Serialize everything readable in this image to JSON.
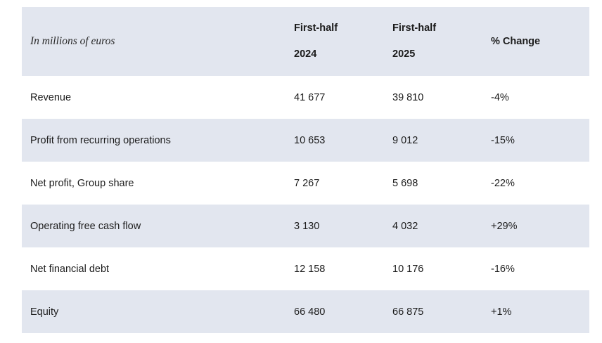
{
  "table": {
    "header": {
      "units": "In millions of euros",
      "col1_line1": "First-half",
      "col1_line2": "2024",
      "col2_line1": "First-half",
      "col2_line2": "2025",
      "col3": "% Change"
    },
    "rows": [
      {
        "label": "Revenue",
        "h1_2024": "41 677",
        "h1_2025": "39 810",
        "change": "-4%"
      },
      {
        "label": "Profit from recurring operations",
        "h1_2024": "10 653",
        "h1_2025": "9 012",
        "change": "-15%"
      },
      {
        "label": "Net profit, Group share",
        "h1_2024": "7 267",
        "h1_2025": "5 698",
        "change": "-22%"
      },
      {
        "label": "Operating free cash flow",
        "h1_2024": "3 130",
        "h1_2025": "4 032",
        "change": "+29%"
      },
      {
        "label": "Net financial debt",
        "h1_2024": "12 158",
        "h1_2025": "10 176",
        "change": "-16%"
      },
      {
        "label": "Equity",
        "h1_2024": "66 480",
        "h1_2025": "66 875",
        "change": "+1%"
      }
    ]
  },
  "colors": {
    "shaded_row": "#e2e6ef",
    "text": "#1b1b1b"
  }
}
